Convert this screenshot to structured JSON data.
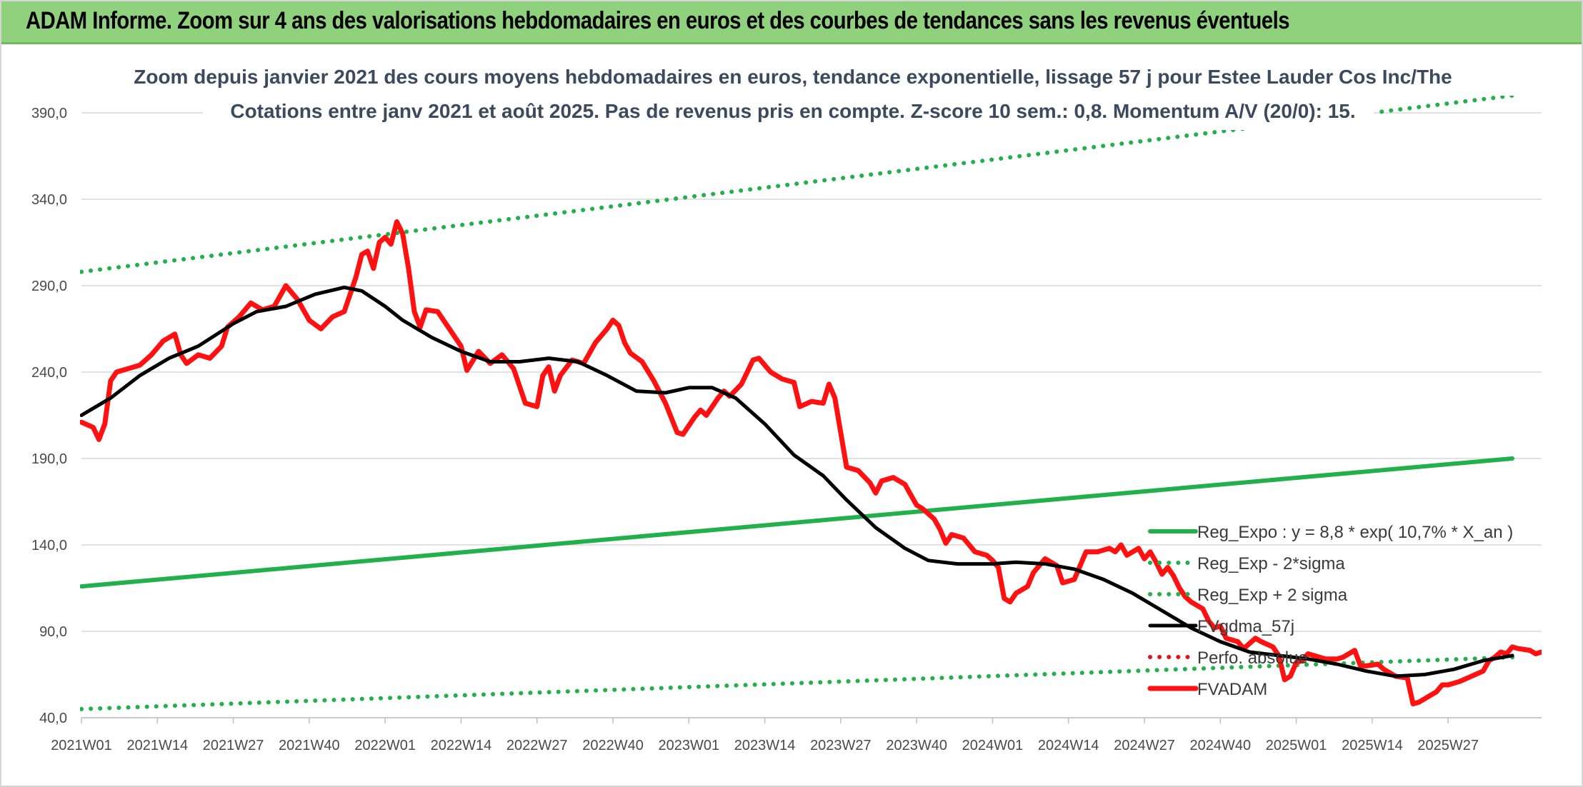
{
  "header": {
    "title": "ADAM Informe. Zoom sur 4 ans des valorisations hebdomadaires en euros et des courbes de tendances sans les revenus éventuels"
  },
  "colors": {
    "banner": "#8fd17c",
    "title_text": "#3b4a5e",
    "gridline": "#d9d9d9",
    "reg_expo": "#22b04b",
    "price": "#ff1111",
    "smooth": "#000000",
    "perf": "#e0141e"
  },
  "chart_data": {
    "type": "line",
    "title": [
      "Zoom depuis janvier 2021 des cours moyens hebdomadaires en euros, tendance exponentielle, lissage 57 j pour Estee Lauder Cos Inc/The",
      "Cotations entre janv 2021 et août 2025. Pas de revenus pris en compte. Z-score 10 sem.: 0,8. Momentum A/V (20/0): 15."
    ],
    "ylim": [
      40,
      390
    ],
    "y_ticks": [
      "40,0",
      "90,0",
      "140,0",
      "190,0",
      "240,0",
      "290,0",
      "340,0",
      "390,0"
    ],
    "y_tick_values": [
      40,
      90,
      140,
      190,
      240,
      290,
      340,
      390
    ],
    "x_ticks": [
      "2021W01",
      "2021W14",
      "2021W27",
      "2021W40",
      "2022W01",
      "2022W14",
      "2022W27",
      "2022W40",
      "2023W01",
      "2023W14",
      "2023W27",
      "2023W40",
      "2024W01",
      "2024W14",
      "2024W27",
      "2024W40",
      "2025W01",
      "2025W14",
      "2025W27"
    ],
    "x_tick_weeks": [
      0,
      13,
      26,
      39,
      52,
      65,
      78,
      91,
      104,
      117,
      130,
      143,
      156,
      169,
      182,
      195,
      208,
      221,
      234
    ],
    "x_range_weeks": [
      0,
      245
    ],
    "grid": "horizontal",
    "legend_placement": "right",
    "series": [
      {
        "name": "Reg_Expo : y = 8,8 * exp( 10,7% *  X_an )",
        "style": "solid",
        "color": "#22b04b",
        "points": [
          [
            0,
            116
          ],
          [
            245,
            190
          ]
        ]
      },
      {
        "name": "Reg_Exp - 2*sigma",
        "style": "dotted",
        "color": "#22b04b",
        "points": [
          [
            0,
            45
          ],
          [
            245,
            75
          ]
        ]
      },
      {
        "name": "Reg_Exp + 2 sigma",
        "style": "dotted",
        "color": "#22b04b",
        "points": [
          [
            0,
            298
          ],
          [
            245,
            400
          ]
        ]
      },
      {
        "name": "FVgdma_57j",
        "style": "solid",
        "color": "#000000",
        "points": [
          [
            0,
            215
          ],
          [
            5,
            225
          ],
          [
            10,
            238
          ],
          [
            15,
            248
          ],
          [
            20,
            255
          ],
          [
            26,
            268
          ],
          [
            30,
            275
          ],
          [
            35,
            278
          ],
          [
            40,
            285
          ],
          [
            45,
            289
          ],
          [
            48,
            287
          ],
          [
            52,
            278
          ],
          [
            55,
            270
          ],
          [
            60,
            260
          ],
          [
            65,
            252
          ],
          [
            70,
            246
          ],
          [
            75,
            246
          ],
          [
            80,
            248
          ],
          [
            85,
            246
          ],
          [
            90,
            238
          ],
          [
            95,
            229
          ],
          [
            100,
            228
          ],
          [
            104,
            231
          ],
          [
            108,
            231
          ],
          [
            112,
            225
          ],
          [
            117,
            210
          ],
          [
            122,
            192
          ],
          [
            127,
            180
          ],
          [
            131,
            166
          ],
          [
            136,
            150
          ],
          [
            141,
            138
          ],
          [
            145,
            131
          ],
          [
            150,
            129
          ],
          [
            156,
            129
          ],
          [
            160,
            130
          ],
          [
            165,
            129
          ],
          [
            170,
            126
          ],
          [
            175,
            120
          ],
          [
            180,
            112
          ],
          [
            185,
            102
          ],
          [
            190,
            92
          ],
          [
            195,
            84
          ],
          [
            200,
            78
          ],
          [
            205,
            76
          ],
          [
            210,
            74
          ],
          [
            215,
            71
          ],
          [
            220,
            67
          ],
          [
            225,
            64
          ],
          [
            230,
            65
          ],
          [
            235,
            68
          ],
          [
            240,
            73
          ],
          [
            245,
            76
          ]
        ]
      },
      {
        "name": "Perfo. absolue",
        "style": "dotted",
        "color": "#e0141e",
        "points": []
      },
      {
        "name": "FVADAM",
        "style": "solid",
        "color": "#ff1111",
        "points": [
          [
            0,
            211
          ],
          [
            2,
            208
          ],
          [
            3,
            201
          ],
          [
            4,
            210
          ],
          [
            5,
            235
          ],
          [
            6,
            240
          ],
          [
            8,
            242
          ],
          [
            10,
            244
          ],
          [
            12,
            250
          ],
          [
            14,
            258
          ],
          [
            16,
            262
          ],
          [
            17,
            250
          ],
          [
            18,
            245
          ],
          [
            20,
            250
          ],
          [
            22,
            248
          ],
          [
            24,
            255
          ],
          [
            25,
            266
          ],
          [
            27,
            272
          ],
          [
            29,
            280
          ],
          [
            31,
            276
          ],
          [
            33,
            278
          ],
          [
            35,
            290
          ],
          [
            37,
            282
          ],
          [
            39,
            270
          ],
          [
            41,
            265
          ],
          [
            43,
            272
          ],
          [
            45,
            275
          ],
          [
            46,
            285
          ],
          [
            47,
            295
          ],
          [
            48,
            308
          ],
          [
            49,
            310
          ],
          [
            50,
            300
          ],
          [
            51,
            315
          ],
          [
            52,
            318
          ],
          [
            53,
            314
          ],
          [
            54,
            327
          ],
          [
            55,
            320
          ],
          [
            56,
            300
          ],
          [
            57,
            275
          ],
          [
            58,
            266
          ],
          [
            59,
            276
          ],
          [
            61,
            275
          ],
          [
            63,
            265
          ],
          [
            65,
            255
          ],
          [
            66,
            241
          ],
          [
            68,
            252
          ],
          [
            70,
            245
          ],
          [
            72,
            250
          ],
          [
            74,
            242
          ],
          [
            76,
            222
          ],
          [
            78,
            220
          ],
          [
            79,
            238
          ],
          [
            80,
            243
          ],
          [
            81,
            229
          ],
          [
            82,
            238
          ],
          [
            84,
            247
          ],
          [
            86,
            245
          ],
          [
            88,
            257
          ],
          [
            90,
            265
          ],
          [
            91,
            270
          ],
          [
            92,
            267
          ],
          [
            93,
            257
          ],
          [
            94,
            251
          ],
          [
            96,
            246
          ],
          [
            98,
            235
          ],
          [
            100,
            222
          ],
          [
            102,
            205
          ],
          [
            103,
            204
          ],
          [
            105,
            214
          ],
          [
            106,
            218
          ],
          [
            107,
            215
          ],
          [
            109,
            225
          ],
          [
            110,
            229
          ],
          [
            111,
            226
          ],
          [
            113,
            233
          ],
          [
            115,
            247
          ],
          [
            116,
            248
          ],
          [
            118,
            240
          ],
          [
            120,
            236
          ],
          [
            122,
            234
          ],
          [
            123,
            220
          ],
          [
            125,
            223
          ],
          [
            127,
            222
          ],
          [
            128,
            233
          ],
          [
            129,
            225
          ],
          [
            130,
            205
          ],
          [
            131,
            185
          ],
          [
            133,
            183
          ],
          [
            135,
            176
          ],
          [
            136,
            170
          ],
          [
            137,
            177
          ],
          [
            139,
            179
          ],
          [
            141,
            175
          ],
          [
            143,
            163
          ],
          [
            144,
            161
          ],
          [
            145,
            158
          ],
          [
            146,
            155
          ],
          [
            147,
            149
          ],
          [
            148,
            141
          ],
          [
            149,
            146
          ],
          [
            151,
            144
          ],
          [
            153,
            136
          ],
          [
            155,
            134
          ],
          [
            156,
            131
          ],
          [
            157,
            127
          ],
          [
            158,
            109
          ],
          [
            159,
            107
          ],
          [
            160,
            112
          ],
          [
            162,
            116
          ],
          [
            163,
            124
          ],
          [
            164,
            128
          ],
          [
            165,
            132
          ],
          [
            167,
            128
          ],
          [
            168,
            118
          ],
          [
            170,
            120
          ],
          [
            171,
            128
          ],
          [
            172,
            136
          ],
          [
            174,
            136
          ],
          [
            176,
            138
          ],
          [
            177,
            136
          ],
          [
            178,
            140
          ],
          [
            179,
            134
          ],
          [
            181,
            138
          ],
          [
            182,
            132
          ],
          [
            183,
            136
          ],
          [
            184,
            130
          ],
          [
            185,
            123
          ],
          [
            186,
            127
          ],
          [
            187,
            122
          ],
          [
            188,
            115
          ],
          [
            189,
            110
          ],
          [
            190,
            107
          ],
          [
            192,
            103
          ],
          [
            193,
            96
          ],
          [
            194,
            92
          ],
          [
            195,
            93
          ],
          [
            196,
            86
          ],
          [
            198,
            84
          ],
          [
            199,
            80
          ],
          [
            201,
            86
          ],
          [
            202,
            84
          ],
          [
            204,
            81
          ],
          [
            205,
            76
          ],
          [
            206,
            62
          ],
          [
            207,
            64
          ],
          [
            208,
            72
          ],
          [
            209,
            73
          ],
          [
            210,
            77
          ],
          [
            211,
            76
          ],
          [
            213,
            74
          ],
          [
            215,
            74
          ],
          [
            216,
            75
          ],
          [
            218,
            79
          ],
          [
            219,
            70
          ],
          [
            220,
            70
          ],
          [
            222,
            71
          ],
          [
            223,
            68
          ],
          [
            225,
            64
          ],
          [
            227,
            63
          ],
          [
            228,
            48
          ],
          [
            229,
            49
          ],
          [
            231,
            53
          ],
          [
            232,
            55
          ],
          [
            233,
            59
          ],
          [
            234,
            59
          ],
          [
            236,
            61
          ],
          [
            238,
            64
          ],
          [
            240,
            67
          ],
          [
            241,
            73
          ],
          [
            242,
            75
          ],
          [
            243,
            78
          ],
          [
            244,
            77
          ],
          [
            245,
            81
          ],
          [
            246,
            80
          ],
          [
            248,
            79
          ],
          [
            249,
            77
          ],
          [
            250,
            78
          ]
        ]
      }
    ]
  }
}
